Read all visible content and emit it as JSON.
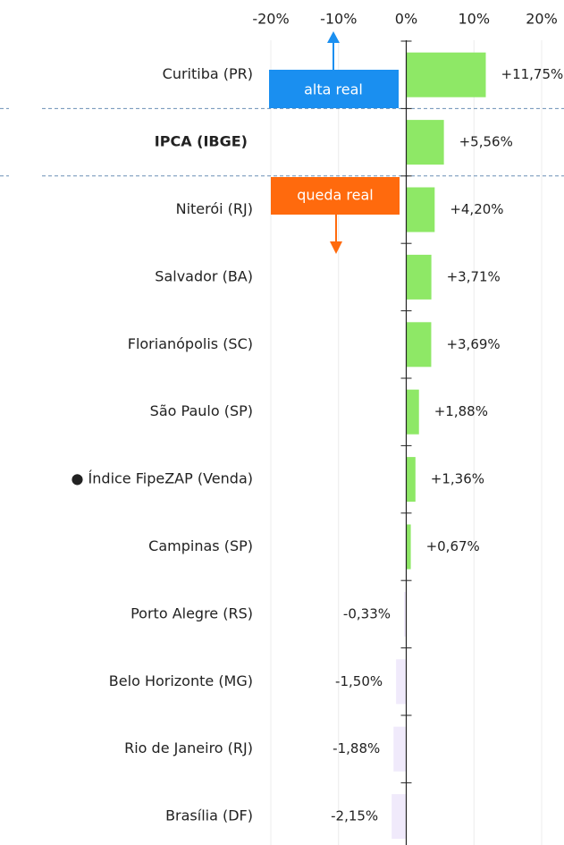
{
  "chart_data": {
    "type": "hbar",
    "categories": [
      "Curitiba (PR)",
      "IPCA (IBGE)",
      "Niterói (RJ)",
      "Salvador (BA)",
      "Florianópolis (SC)",
      "São Paulo (SP)",
      "● Índice FipeZAP (Venda)",
      "Campinas (SP)",
      "Porto Alegre (RS)",
      "Belo Horizonte (MG)",
      "Rio de Janeiro (RJ)",
      "Brasília (DF)"
    ],
    "values": [
      11.75,
      5.56,
      4.2,
      3.71,
      3.69,
      1.88,
      1.36,
      0.67,
      -0.33,
      -1.5,
      -1.88,
      -2.15
    ],
    "value_labels": [
      "+11,75%",
      "+5,56%",
      "+4,20%",
      "+3,71%",
      "+3,69%",
      "+1,88%",
      "+1,36%",
      "+0,67%",
      "-0,33%",
      "-1,50%",
      "-1,88%",
      "-2,15%"
    ],
    "color": "#8ee866",
    "negative_color": "#f0eafb",
    "bold_categories": [
      1
    ],
    "xlim": [
      -20,
      20
    ],
    "xticks": [
      {
        "value": -20,
        "label": "-20%"
      },
      {
        "value": -10,
        "label": "-10%"
      },
      {
        "value": 0,
        "label": "0%"
      },
      {
        "value": 10,
        "label": "10%"
      },
      {
        "value": 20,
        "label": "20%"
      }
    ],
    "grid": true,
    "annotations": [
      {
        "text": "alta real",
        "color": "#1a8ff0"
      },
      {
        "text": "queda real",
        "color": "#ff6a0d"
      }
    ]
  }
}
